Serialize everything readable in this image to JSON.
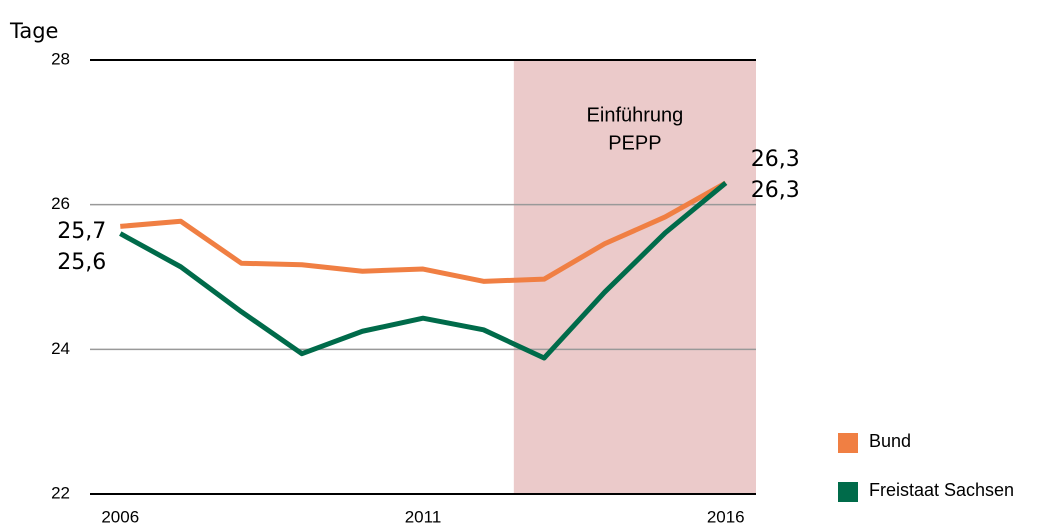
{
  "chart_data": {
    "type": "line",
    "y_label": "Tage",
    "x": [
      2006,
      2007,
      2008,
      2009,
      2010,
      2011,
      2012,
      2013,
      2014,
      2015,
      2016
    ],
    "series": [
      {
        "name": "Bund",
        "color": "#f07f43",
        "values": [
          25.7,
          25.77,
          25.19,
          25.17,
          25.08,
          25.11,
          24.94,
          24.97,
          25.46,
          25.83,
          26.3
        ],
        "value_labels": [
          "25,7",
          null,
          null,
          null,
          null,
          null,
          null,
          null,
          null,
          null,
          "26,3"
        ]
      },
      {
        "name": "Freistaat Sachsen",
        "color": "#006b4a",
        "values": [
          25.6,
          25.14,
          24.52,
          23.94,
          24.25,
          24.43,
          24.27,
          23.88,
          24.79,
          25.61,
          26.3
        ],
        "value_labels": [
          "25,6",
          null,
          null,
          null,
          null,
          null,
          null,
          null,
          null,
          null,
          "26,3"
        ]
      }
    ],
    "xlim": [
      2005.5,
      2016.5
    ],
    "xticks": [
      2006,
      2011,
      2016
    ],
    "ylim": [
      22,
      28
    ],
    "yticks": [
      22,
      24,
      26,
      28
    ],
    "grid": true,
    "shade": {
      "range": [
        2012.5,
        2016.5
      ],
      "color": "#ebcaca",
      "annotation": [
        "Einführung",
        "PEPP"
      ]
    },
    "legend": "lower right"
  }
}
